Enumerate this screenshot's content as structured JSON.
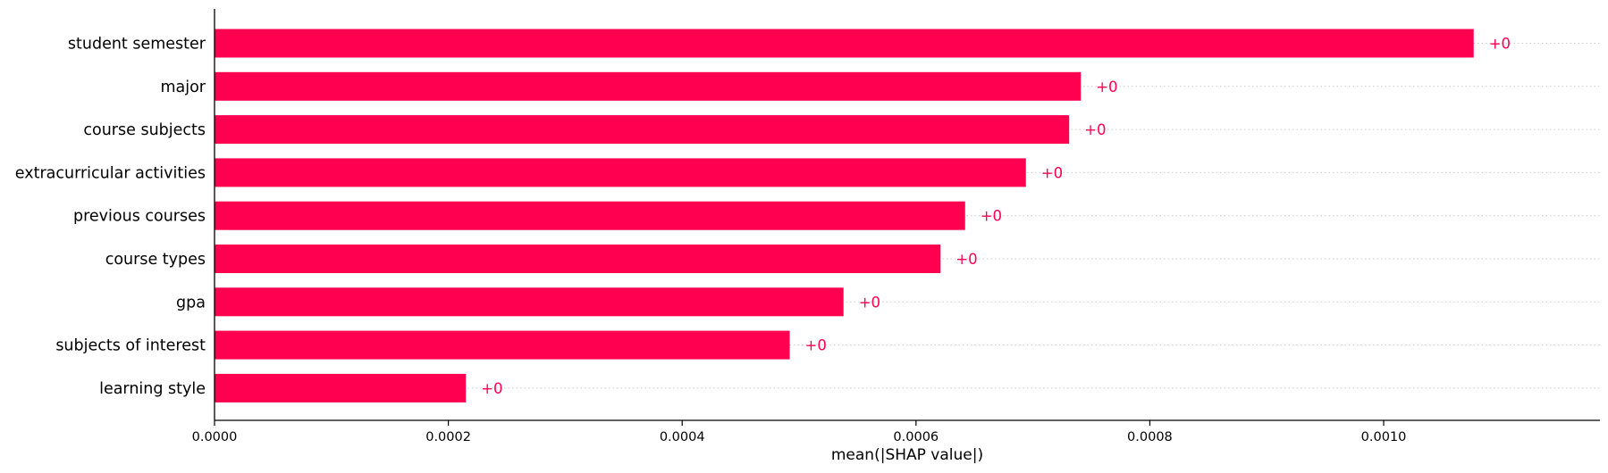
{
  "chart_data": {
    "type": "bar",
    "orientation": "horizontal",
    "xlabel": "mean(|SHAP value|)",
    "xlim": [
      0,
      0.001185
    ],
    "xticks": [
      "0.0000",
      "0.0002",
      "0.0004",
      "0.0006",
      "0.0008",
      "0.0010"
    ],
    "xtick_values": [
      0,
      0.0002,
      0.0004,
      0.0006,
      0.0008,
      0.001
    ],
    "grid": "dotted row guides",
    "bar_color": "#ff0051",
    "categories": [
      "student semester",
      "major",
      "course subjects",
      "extracurricular activities",
      "previous courses",
      "course types",
      "gpa",
      "subjects of interest",
      "learning style"
    ],
    "values": [
      0.001077,
      0.000741,
      0.000731,
      0.000694,
      0.000642,
      0.000621,
      0.000538,
      0.000492,
      0.000215
    ],
    "data_labels": [
      "+0",
      "+0",
      "+0",
      "+0",
      "+0",
      "+0",
      "+0",
      "+0",
      "+0"
    ]
  }
}
